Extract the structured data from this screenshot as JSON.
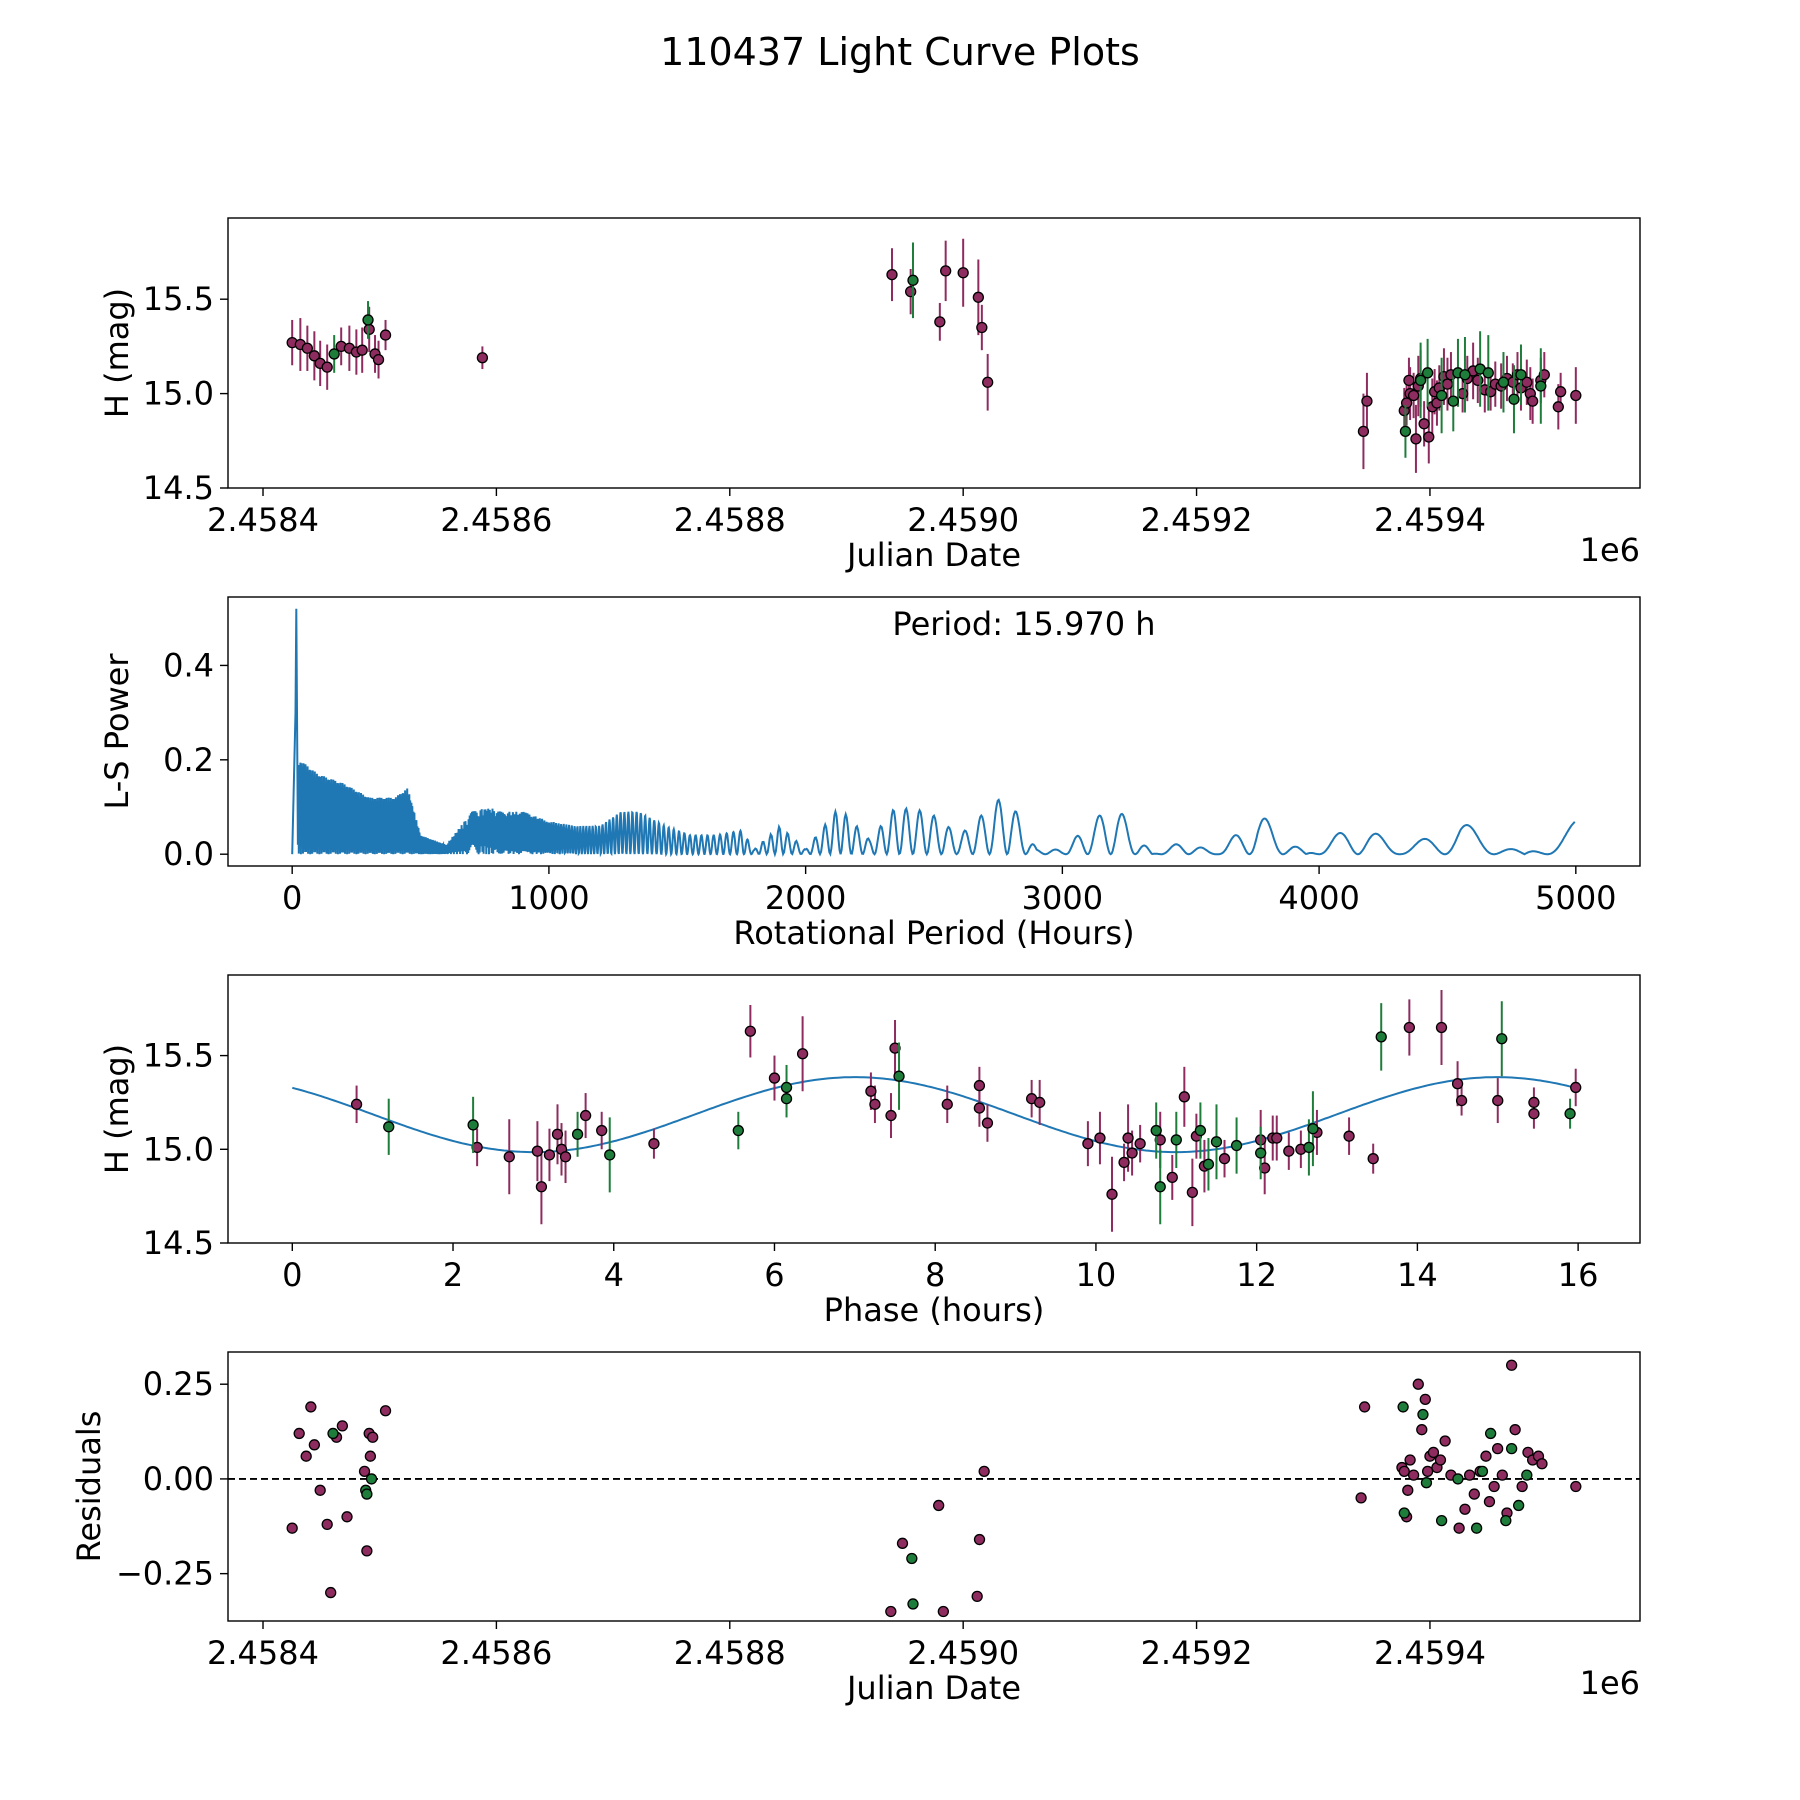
{
  "figure": {
    "title": "110437 Light Curve Plots"
  },
  "colors": {
    "purple": "#8e2c5f",
    "green": "#1e7d3a",
    "line": "#1f77b4",
    "marker_edge": "#000000"
  },
  "chart_data": [
    {
      "name": "light-curve",
      "type": "scatter",
      "error_bars": true,
      "xlabel": "Julian Date",
      "ylabel": "H (mag)",
      "x_offset_label": "1e6",
      "xlim": [
        2.45837,
        2.45958
      ],
      "ylim": [
        14.5,
        15.93
      ],
      "xticks": [
        2.4584,
        2.4586,
        2.4588,
        2.459,
        2.4592,
        2.4594
      ],
      "xtick_labels": [
        "2.4584",
        "2.4586",
        "2.4588",
        "2.4590",
        "2.4592",
        "2.4594"
      ],
      "yticks": [
        14.5,
        15.0,
        15.5
      ],
      "ytick_labels": [
        "14.5",
        "15.0",
        "15.5"
      ],
      "series": [
        {
          "name": "purple",
          "color": "purple",
          "x": [
            2.458425,
            2.458432,
            2.458438,
            2.458444,
            2.458449,
            2.458455,
            2.458467,
            2.458474,
            2.45848,
            2.458485,
            2.458491,
            2.458496,
            2.458499,
            2.458505,
            2.458588,
            2.458939,
            2.458955,
            2.45898,
            2.458985,
            2.459,
            2.459013,
            2.459016,
            2.459021,
            2.459343,
            2.459346,
            2.459378,
            2.45938,
            2.459382,
            2.459383,
            2.459386,
            2.459388,
            2.45939,
            2.459392,
            2.459395,
            2.459399,
            2.459402,
            2.459404,
            2.459406,
            2.459408,
            2.459412,
            2.459415,
            2.459418,
            2.459428,
            2.459432,
            2.459437,
            2.459441,
            2.459447,
            2.459452,
            2.459456,
            2.459461,
            2.459466,
            2.459471,
            2.459475,
            2.459478,
            2.459483,
            2.459486,
            2.459488,
            2.459495,
            2.459498,
            2.45951,
            2.459512,
            2.459525
          ],
          "y": [
            15.27,
            15.26,
            15.24,
            15.2,
            15.16,
            15.14,
            15.25,
            15.24,
            15.22,
            15.23,
            15.34,
            15.21,
            15.18,
            15.31,
            15.19,
            15.63,
            15.54,
            15.38,
            15.65,
            15.64,
            15.51,
            15.35,
            15.06,
            14.8,
            14.96,
            14.91,
            14.95,
            15.07,
            15.0,
            14.99,
            14.76,
            15.04,
            15.08,
            14.84,
            14.77,
            14.93,
            15.01,
            14.95,
            15.03,
            15.09,
            15.05,
            15.1,
            15.0,
            15.08,
            15.12,
            15.07,
            15.02,
            15.01,
            15.05,
            15.04,
            15.08,
            15.06,
            15.1,
            15.03,
            15.06,
            15.0,
            14.96,
            15.07,
            15.1,
            14.93,
            15.01,
            14.99
          ],
          "err": [
            0.12,
            0.14,
            0.12,
            0.13,
            0.12,
            0.12,
            0.1,
            0.12,
            0.12,
            0.12,
            0.12,
            0.1,
            0.1,
            0.08,
            0.06,
            0.14,
            0.12,
            0.1,
            0.16,
            0.18,
            0.2,
            0.12,
            0.15,
            0.2,
            0.15,
            0.12,
            0.12,
            0.12,
            0.14,
            0.12,
            0.18,
            0.16,
            0.15,
            0.12,
            0.14,
            0.15,
            0.12,
            0.12,
            0.12,
            0.15,
            0.14,
            0.12,
            0.1,
            0.12,
            0.15,
            0.12,
            0.12,
            0.1,
            0.12,
            0.12,
            0.12,
            0.1,
            0.12,
            0.12,
            0.12,
            0.14,
            0.12,
            0.12,
            0.12,
            0.12,
            0.1,
            0.15
          ]
        },
        {
          "name": "green",
          "color": "green",
          "x": [
            2.458461,
            2.45849,
            2.458957,
            2.459379,
            2.459392,
            2.459398,
            2.45941,
            2.45942,
            2.459424,
            2.45943,
            2.459443,
            2.45945,
            2.459463,
            2.459472,
            2.459478,
            2.459495
          ],
          "y": [
            15.21,
            15.39,
            15.6,
            14.8,
            15.07,
            15.11,
            14.99,
            14.96,
            15.11,
            15.1,
            15.13,
            15.11,
            15.06,
            14.97,
            15.1,
            15.04
          ],
          "err": [
            0.1,
            0.1,
            0.2,
            0.14,
            0.2,
            0.18,
            0.2,
            0.16,
            0.18,
            0.2,
            0.2,
            0.2,
            0.16,
            0.18,
            0.16,
            0.2
          ]
        }
      ]
    },
    {
      "name": "periodogram",
      "type": "line",
      "xlabel": "Rotational Period (Hours)",
      "ylabel": "L-S Power",
      "annotation": "Period: 15.970 h",
      "xlim": [
        -250,
        5250
      ],
      "ylim": [
        -0.025,
        0.545
      ],
      "xticks": [
        0,
        1000,
        2000,
        3000,
        4000,
        5000
      ],
      "xtick_labels": [
        "0",
        "1000",
        "2000",
        "3000",
        "4000",
        "5000"
      ],
      "yticks": [
        0.0,
        0.2,
        0.4
      ],
      "ytick_labels": [
        "0.0",
        "0.2",
        "0.4"
      ],
      "peak": {
        "x": 15.97,
        "y": 0.52
      },
      "envelope": {
        "x": [
          30,
          100,
          200,
          300,
          400,
          450,
          500,
          600,
          700,
          760,
          820,
          900,
          1000,
          1100,
          1200,
          1280,
          1350,
          1450,
          1550,
          1650,
          1750,
          1800,
          1900,
          2000,
          2130,
          2250,
          2350,
          2480,
          2600,
          2780,
          2900,
          3000,
          3200,
          3350,
          3480,
          3600,
          3760,
          3950,
          4150,
          4320,
          4550,
          4800,
          5000
        ],
        "y": [
          0.2,
          0.17,
          0.15,
          0.12,
          0.12,
          0.14,
          0.04,
          0.02,
          0.09,
          0.1,
          0.09,
          0.09,
          0.07,
          0.06,
          0.06,
          0.09,
          0.09,
          0.06,
          0.04,
          0.04,
          0.05,
          0.01,
          0.06,
          0.01,
          0.1,
          0.03,
          0.1,
          0.09,
          0.04,
          0.13,
          0.01,
          0.01,
          0.11,
          0.0,
          0.03,
          0.0,
          0.09,
          0.0,
          0.07,
          0.01,
          0.07,
          0.0,
          0.07
        ]
      }
    },
    {
      "name": "phase-curve",
      "type": "scatter",
      "error_bars": true,
      "xlabel": "Phase (hours)",
      "ylabel": "H (mag)",
      "xlim": [
        -0.8,
        16.77
      ],
      "ylim": [
        14.5,
        15.93
      ],
      "xticks": [
        0,
        2,
        4,
        6,
        8,
        10,
        12,
        14,
        16
      ],
      "xtick_labels": [
        "0",
        "2",
        "4",
        "6",
        "8",
        "10",
        "12",
        "14",
        "16"
      ],
      "yticks": [
        14.5,
        15.0,
        15.5
      ],
      "ytick_labels": [
        "14.5",
        "15.0",
        "15.5"
      ],
      "fit": {
        "mean": 15.185,
        "amplitude": 0.2,
        "period": 7.985,
        "phase_of_max": 7.0,
        "x_max": 15.97
      },
      "series": [
        {
          "name": "purple",
          "color": "purple",
          "x": [
            0.8,
            2.3,
            2.7,
            3.05,
            3.1,
            3.2,
            3.3,
            3.35,
            3.4,
            3.65,
            3.85,
            4.5,
            5.7,
            6.0,
            6.35,
            7.2,
            7.25,
            7.45,
            7.5,
            8.15,
            8.55,
            8.55,
            8.65,
            9.2,
            9.3,
            9.9,
            10.05,
            10.2,
            10.35,
            10.4,
            10.45,
            10.55,
            10.8,
            10.95,
            11.1,
            11.2,
            11.25,
            11.35,
            11.6,
            12.05,
            12.1,
            12.2,
            12.25,
            12.4,
            12.55,
            12.75,
            13.15,
            13.45,
            13.9,
            14.3,
            14.5,
            14.55,
            15.0,
            15.45,
            15.45,
            15.97
          ],
          "y": [
            15.24,
            15.01,
            14.96,
            14.99,
            14.8,
            14.97,
            15.08,
            15.0,
            14.96,
            15.18,
            15.1,
            15.03,
            15.63,
            15.38,
            15.51,
            15.31,
            15.24,
            15.18,
            15.54,
            15.24,
            15.34,
            15.22,
            15.14,
            15.27,
            15.25,
            15.03,
            15.06,
            14.76,
            14.93,
            15.06,
            14.98,
            15.03,
            15.05,
            14.85,
            15.28,
            14.77,
            15.07,
            14.91,
            14.95,
            15.05,
            14.9,
            15.06,
            15.06,
            14.99,
            15.0,
            15.09,
            15.07,
            14.95,
            15.65,
            15.65,
            15.35,
            15.26,
            15.26,
            15.25,
            15.19,
            15.33
          ],
          "err": [
            0.1,
            0.1,
            0.2,
            0.16,
            0.2,
            0.14,
            0.16,
            0.14,
            0.14,
            0.12,
            0.1,
            0.08,
            0.14,
            0.12,
            0.2,
            0.1,
            0.1,
            0.12,
            0.15,
            0.1,
            0.1,
            0.1,
            0.1,
            0.1,
            0.12,
            0.12,
            0.14,
            0.2,
            0.1,
            0.18,
            0.12,
            0.1,
            0.15,
            0.12,
            0.16,
            0.18,
            0.12,
            0.14,
            0.1,
            0.16,
            0.14,
            0.12,
            0.12,
            0.1,
            0.1,
            0.12,
            0.1,
            0.08,
            0.15,
            0.2,
            0.12,
            0.08,
            0.12,
            0.08,
            0.08,
            0.1
          ]
        },
        {
          "name": "green",
          "color": "green",
          "x": [
            1.2,
            2.25,
            3.55,
            3.95,
            5.55,
            6.15,
            6.15,
            7.55,
            10.75,
            10.8,
            11.0,
            11.3,
            11.4,
            11.5,
            11.75,
            12.05,
            12.65,
            12.7,
            13.55,
            15.05,
            15.9
          ],
          "y": [
            15.12,
            15.13,
            15.08,
            14.97,
            15.1,
            15.27,
            15.33,
            15.39,
            15.1,
            14.8,
            15.05,
            15.1,
            14.92,
            15.04,
            15.02,
            14.98,
            15.01,
            15.11,
            15.6,
            15.59,
            15.19
          ],
          "err": [
            0.15,
            0.15,
            0.12,
            0.2,
            0.1,
            0.1,
            0.12,
            0.18,
            0.15,
            0.2,
            0.15,
            0.15,
            0.14,
            0.2,
            0.15,
            0.14,
            0.15,
            0.2,
            0.18,
            0.2,
            0.08
          ]
        }
      ]
    },
    {
      "name": "residuals",
      "type": "scatter",
      "xlabel": "Julian Date",
      "ylabel": "Residuals",
      "x_offset_label": "1e6",
      "xlim": [
        2.45837,
        2.45958
      ],
      "ylim": [
        -0.375,
        0.335
      ],
      "xticks": [
        2.4584,
        2.4586,
        2.4588,
        2.459,
        2.4592,
        2.4594
      ],
      "xtick_labels": [
        "2.4584",
        "2.4586",
        "2.4588",
        "2.4590",
        "2.4592",
        "2.4594"
      ],
      "yticks": [
        -0.25,
        0.0,
        0.25
      ],
      "ytick_labels": [
        "−0.25",
        "0.00",
        "0.25"
      ],
      "reference_line": 0.0,
      "series": [
        {
          "name": "purple",
          "color": "purple",
          "x": [
            2.458425,
            2.458431,
            2.458437,
            2.458441,
            2.458444,
            2.458449,
            2.458455,
            2.458458,
            2.458463,
            2.458468,
            2.458472,
            2.458487,
            2.458489,
            2.458491,
            2.458492,
            2.458494,
            2.458505,
            2.458938,
            2.458948,
            2.458979,
            2.458983,
            2.459012,
            2.459014,
            2.459018,
            2.459341,
            2.459344,
            2.459376,
            2.459378,
            2.45938,
            2.459381,
            2.459383,
            2.459386,
            2.45939,
            2.459393,
            2.459396,
            2.459398,
            2.4594,
            2.459403,
            2.459406,
            2.459409,
            2.459413,
            2.459418,
            2.459425,
            2.45943,
            2.459434,
            2.459438,
            2.459443,
            2.459448,
            2.459451,
            2.459455,
            2.459458,
            2.459462,
            2.459466,
            2.45947,
            2.459473,
            2.459479,
            2.459484,
            2.459488,
            2.459493,
            2.459496,
            2.459525
          ],
          "y": [
            -0.13,
            0.12,
            0.06,
            0.19,
            0.09,
            -0.03,
            -0.12,
            -0.3,
            0.11,
            0.14,
            -0.1,
            0.02,
            -0.19,
            0.12,
            0.06,
            0.11,
            0.18,
            -0.35,
            -0.17,
            -0.07,
            -0.35,
            -0.31,
            -0.16,
            0.02,
            -0.05,
            0.19,
            0.03,
            0.02,
            -0.1,
            -0.03,
            0.05,
            0.01,
            0.25,
            0.13,
            0.21,
            0.02,
            0.06,
            0.07,
            0.03,
            0.05,
            0.1,
            0.01,
            -0.13,
            -0.08,
            0.01,
            -0.04,
            0.02,
            0.06,
            -0.06,
            -0.02,
            0.08,
            0.01,
            -0.09,
            0.3,
            0.13,
            -0.02,
            0.07,
            0.05,
            0.06,
            0.04,
            -0.02
          ]
        },
        {
          "name": "green",
          "color": "green",
          "x": [
            2.45846,
            2.458488,
            2.458489,
            2.458493,
            2.458956,
            2.458957,
            2.459377,
            2.459378,
            2.459394,
            2.459397,
            2.45941,
            2.459424,
            2.45944,
            2.459445,
            2.459452,
            2.459465,
            2.45947,
            2.459476,
            2.459483
          ],
          "y": [
            0.12,
            -0.03,
            -0.04,
            0.0,
            -0.21,
            -0.33,
            0.19,
            -0.09,
            0.17,
            -0.01,
            -0.11,
            0.0,
            -0.13,
            0.02,
            0.12,
            -0.11,
            0.08,
            -0.07,
            0.01
          ]
        }
      ]
    }
  ]
}
